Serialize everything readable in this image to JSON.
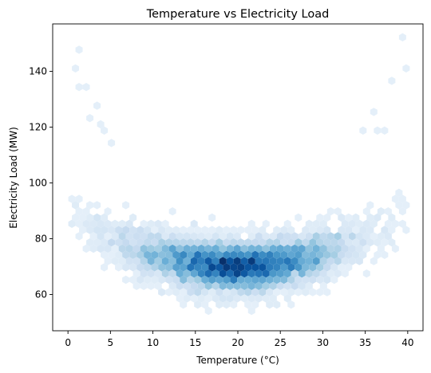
{
  "chart_data": {
    "type": "hexbin",
    "title": "Temperature vs Electricity Load",
    "xlabel": "Temperature (°C)",
    "ylabel": "Electricity Load (MW)",
    "xlim": [
      -1.8,
      41.8
    ],
    "ylim": [
      47,
      157
    ],
    "xticks": [
      0,
      5,
      10,
      15,
      20,
      25,
      30,
      35,
      40
    ],
    "yticks": [
      60,
      80,
      100,
      120,
      140
    ],
    "xtick_labels": [
      "0",
      "5",
      "10",
      "15",
      "20",
      "25",
      "30",
      "35",
      "40"
    ],
    "ytick_labels": [
      "60",
      "80",
      "100",
      "120",
      "140"
    ],
    "grid": false,
    "colormap": "Blues",
    "colors": {
      "low": "#f7fbff",
      "high": "#08306b",
      "axis": "#000000"
    },
    "relationship": {
      "description": "U-shaped: load minimum near 20 °C",
      "center_temperature": 20,
      "min_load": 70,
      "curvature": 0.045,
      "spread_sd": 4.5
    },
    "density": {
      "x_mean": 20,
      "x_sd": 6.5,
      "peak_x": 20,
      "peak_y": 71
    },
    "outliers": [
      [
        0.5,
        141
      ],
      [
        1.2,
        148
      ],
      [
        1.1,
        134
      ],
      [
        2.3,
        135
      ],
      [
        3.5,
        127
      ],
      [
        4.2,
        118
      ],
      [
        39.6,
        152
      ],
      [
        39.5,
        141
      ],
      [
        37.7,
        136
      ],
      [
        37.2,
        120
      ],
      [
        35.7,
        125
      ],
      [
        34.9,
        118
      ],
      [
        5.0,
        114
      ],
      [
        36.5,
        119
      ],
      [
        3.8,
        122
      ],
      [
        2.8,
        124
      ]
    ]
  }
}
